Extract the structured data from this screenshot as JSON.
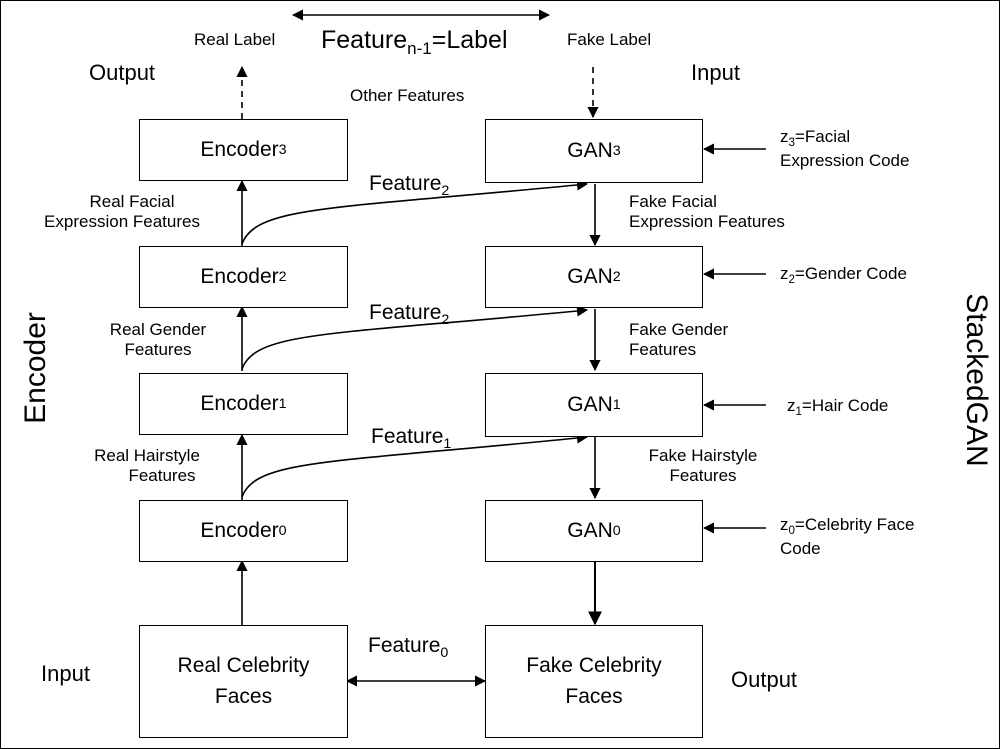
{
  "boxes": {
    "encoder3": {
      "base": "Encoder",
      "sub": "3"
    },
    "encoder2": {
      "base": "Encoder",
      "sub": "2"
    },
    "encoder1": {
      "base": "Encoder",
      "sub": "1"
    },
    "encoder0": {
      "base": "Encoder",
      "sub": "0"
    },
    "gan3": {
      "base": "GAN",
      "sub": "3"
    },
    "gan2": {
      "base": "GAN",
      "sub": "2"
    },
    "gan1": {
      "base": "GAN",
      "sub": "1"
    },
    "gan0": {
      "base": "GAN",
      "sub": "0"
    },
    "real_faces": {
      "line1": "Real Celebrity",
      "line2": "Faces"
    },
    "fake_faces": {
      "line1": "Fake Celebrity",
      "line2": "Faces"
    }
  },
  "labels": {
    "real_label": "Real Label",
    "fake_label": "Fake Label",
    "feature_top": {
      "base": "Feature",
      "sub": "n-1",
      "suffix": "=Label"
    },
    "output_left": "Output",
    "input_right": "Input",
    "other_features": "Other Features",
    "feature_a": {
      "base": "Feature",
      "sub": "2"
    },
    "feature_b": {
      "base": "Feature",
      "sub": "2"
    },
    "feature_c": {
      "base": "Feature",
      "sub": "1"
    },
    "feature_d": {
      "base": "Feature",
      "sub": "0"
    },
    "real_facial": {
      "line1": "Real Facial",
      "line2": "Expression Features"
    },
    "fake_facial": {
      "line1": "Fake Facial",
      "line2": "Expression Features"
    },
    "real_gender": {
      "line1": "Real Gender",
      "line2": "Features"
    },
    "fake_gender": {
      "line1": "Fake Gender",
      "line2": "Features"
    },
    "real_hair": {
      "line1": "Real Hairstyle",
      "line2": "Features"
    },
    "fake_hair": {
      "line1": "Fake Hairstyle",
      "line2": "Features"
    },
    "z3": {
      "base": "z",
      "sub": "3",
      "line1_suffix": "=Facial",
      "line2": "Expression Code"
    },
    "z2": {
      "base": "z",
      "sub": "2",
      "suffix": "=Gender Code"
    },
    "z1": {
      "base": "z",
      "sub": "1",
      "suffix": "=Hair Code"
    },
    "z0": {
      "base": "z",
      "sub": "0",
      "line1_suffix": "=Celebrity Face",
      "line2": "Code"
    },
    "input_left": "Input",
    "output_right": "Output",
    "encoder_side": "Encoder",
    "stackedgan_side": "StackedGAN"
  }
}
